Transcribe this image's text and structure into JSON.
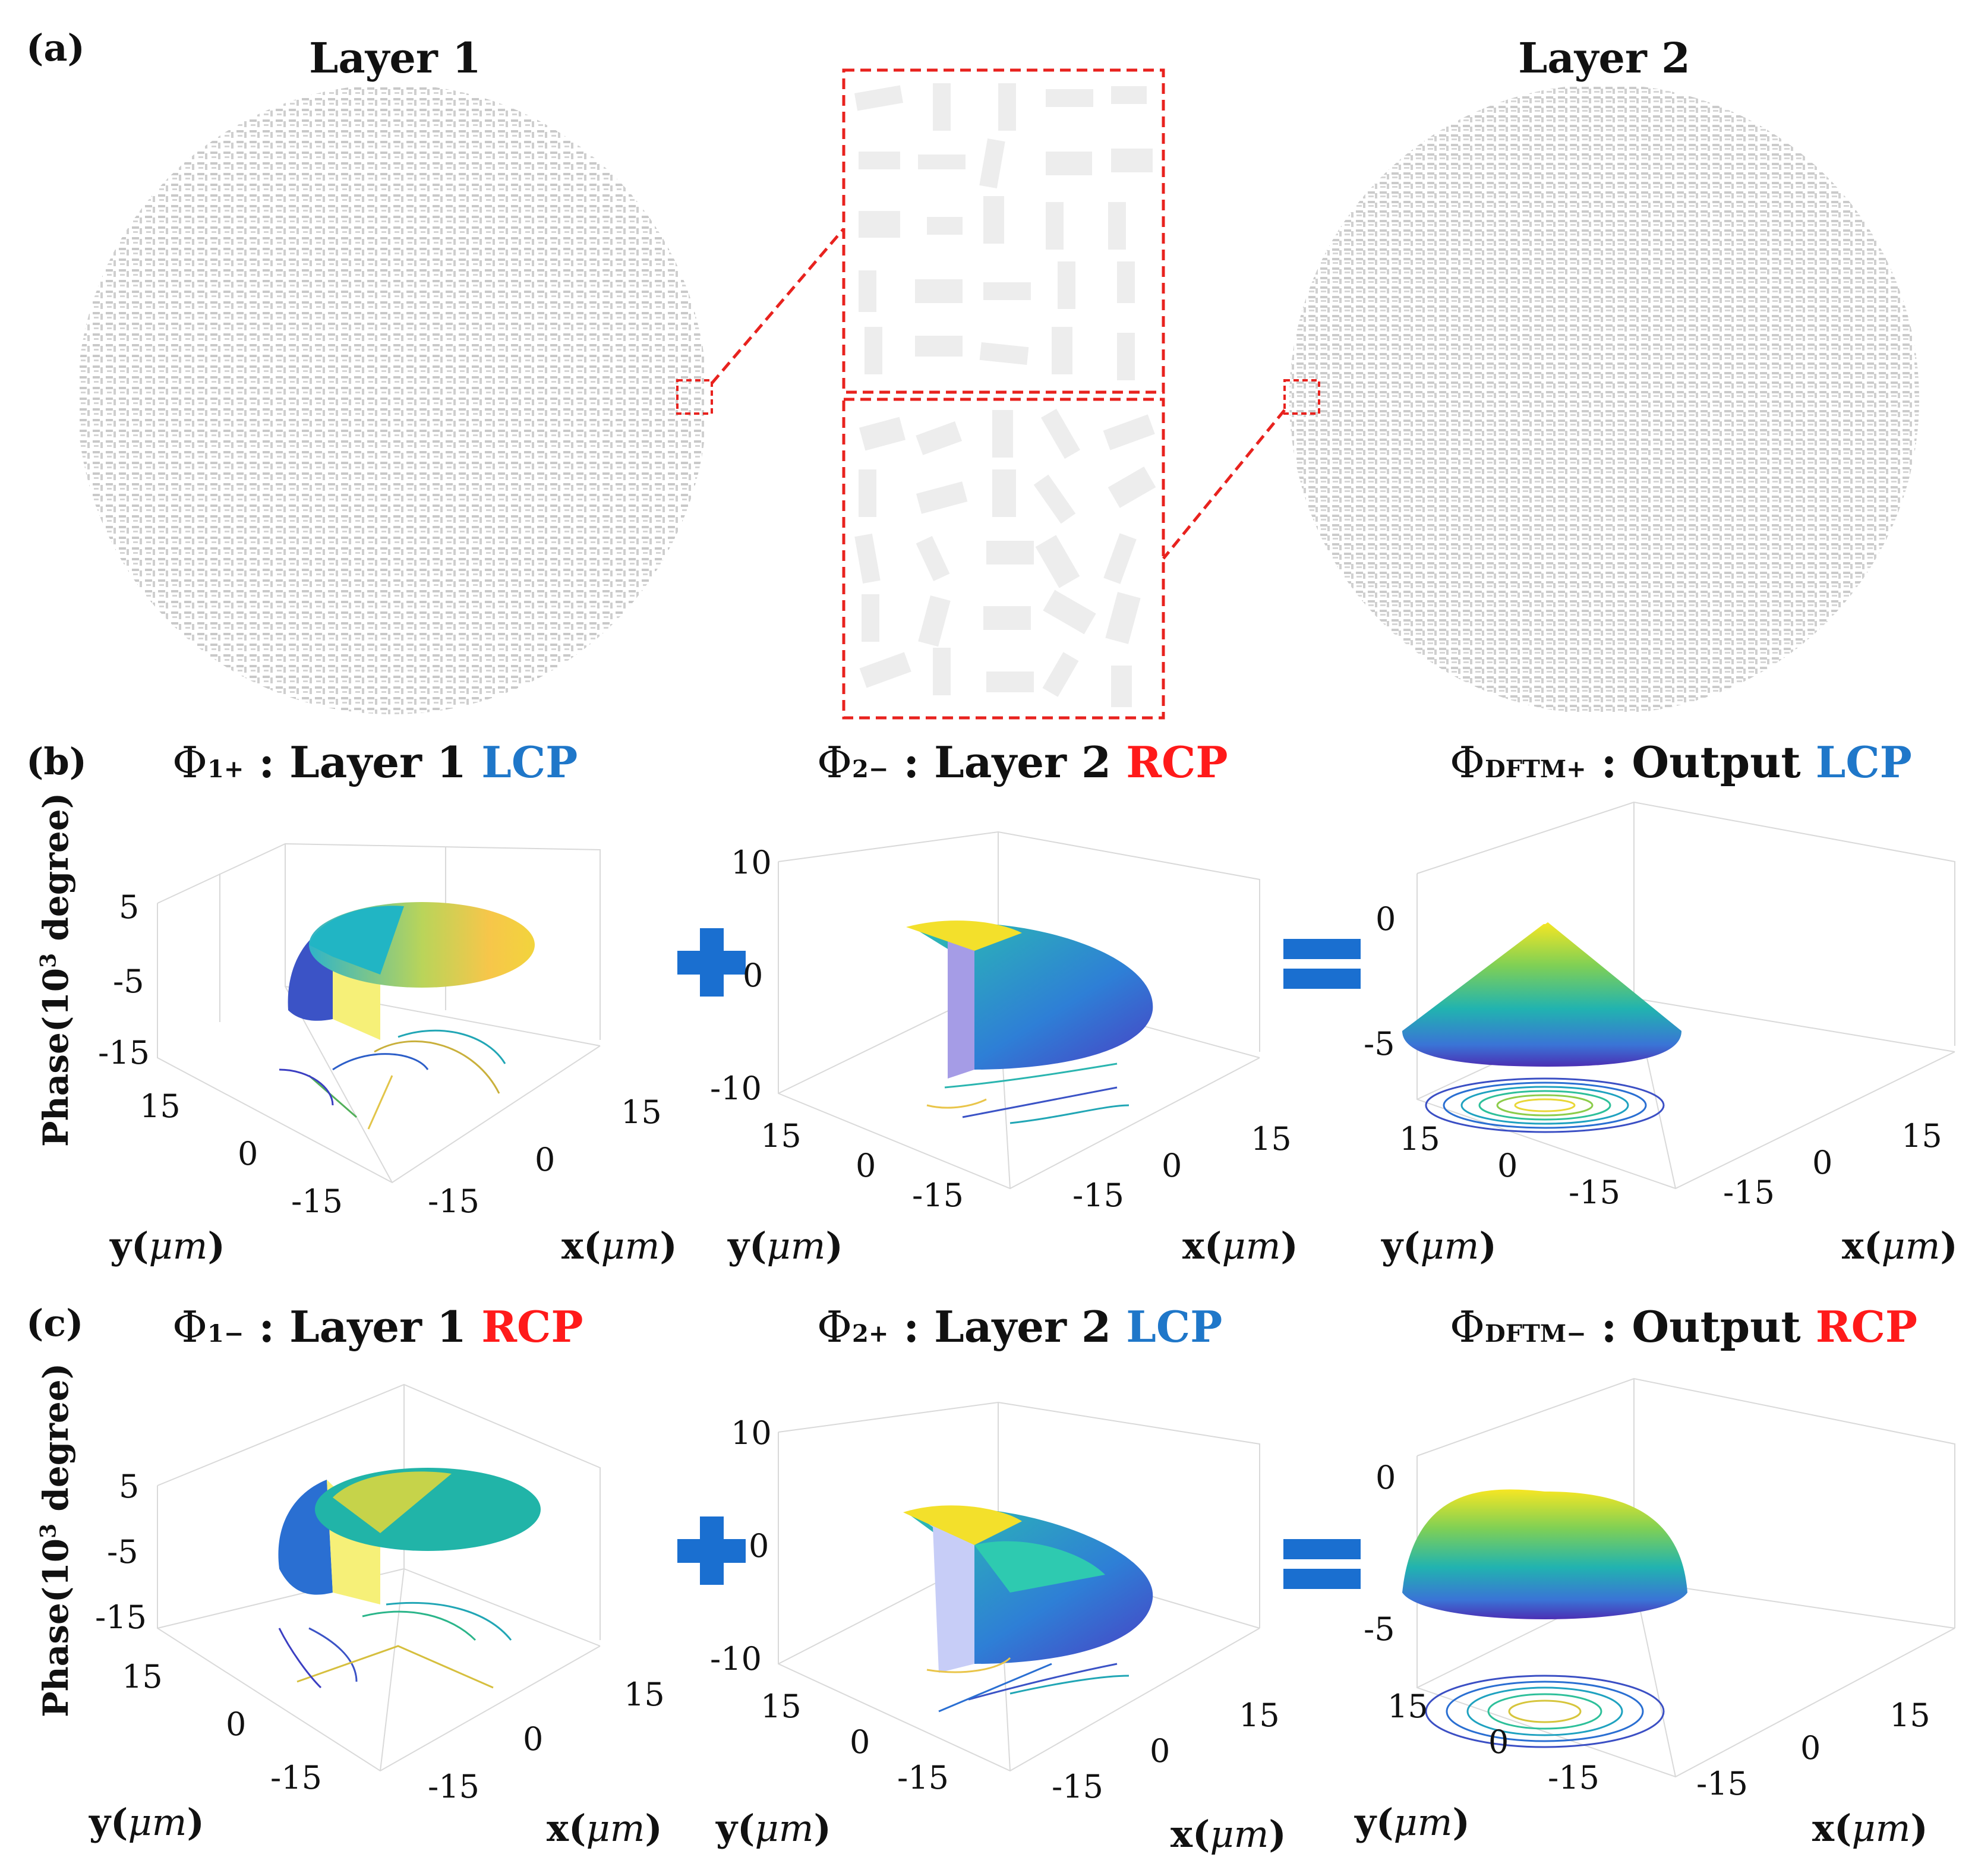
{
  "panel_a": {
    "label": "(a)",
    "layer1_title": "Layer 1",
    "layer2_title": "Layer 2"
  },
  "panel_b": {
    "label": "(b)",
    "plot1": {
      "phi": "Φ",
      "sub": "1+",
      "text": " : Layer 1 ",
      "pol": "LCP"
    },
    "plot2": {
      "phi": "Φ",
      "sub": "2−",
      "text": " : Layer 2 ",
      "pol": "RCP"
    },
    "plot3": {
      "phi": "Φ",
      "sub": "DFTM+",
      "text": " : Output ",
      "pol": "LCP"
    }
  },
  "panel_c": {
    "label": "(c)",
    "plot1": {
      "phi": "Φ",
      "sub": "1−",
      "text": " : Layer 1 ",
      "pol": "RCP"
    },
    "plot2": {
      "phi": "Φ",
      "sub": "2+",
      "text": " : Layer 2 ",
      "pol": "LCP"
    },
    "plot3": {
      "phi": "Φ",
      "sub": "DFTM−",
      "text": " : Output ",
      "pol": "RCP"
    }
  },
  "axes": {
    "ylabel_main": "Phase(10",
    "ylabel_sup": "3",
    "ylabel_tail": " degree)",
    "xlabel_pre": "x(",
    "ylabel_pre": "y(",
    "mu": "μm",
    "close": ")",
    "ticks_layer1": [
      "5",
      "-5",
      "-15"
    ],
    "ticks_layer2": [
      "10",
      "0",
      "-10"
    ],
    "ticks_output_b": [
      "0",
      "-5"
    ],
    "ticks_output_c": [
      "0",
      "-5"
    ],
    "ticks_xy": [
      "15",
      "0",
      "-15"
    ]
  },
  "colors": {
    "lcp": "#1f77c9",
    "rcp": "#ff1a1a",
    "operator": "#1a6fd0",
    "dashed": "#e8221e"
  }
}
